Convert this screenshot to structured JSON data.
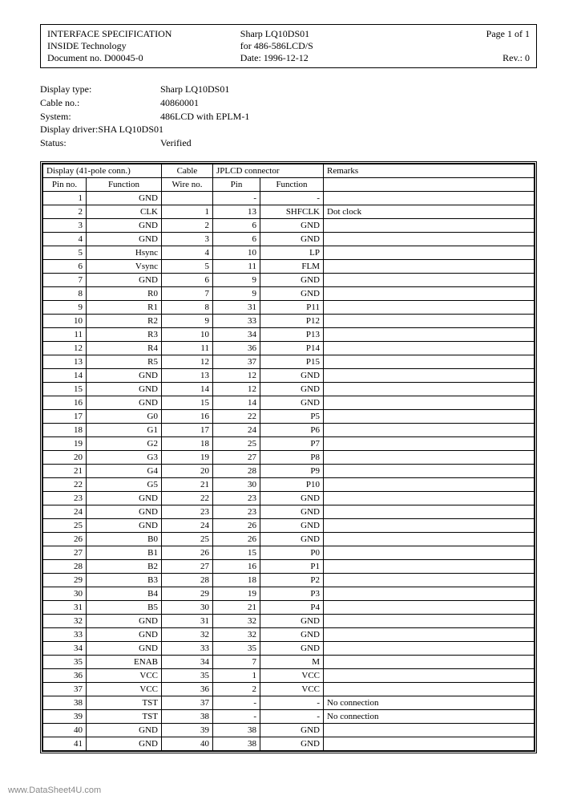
{
  "header": {
    "title": "INTERFACE SPECIFICATION",
    "subtitle": "INSIDE Technology",
    "docno": "Document no. D00045-0",
    "device": "Sharp LQ10DS01",
    "for": "for 486-586LCD/S",
    "date": "Date: 1996-12-12",
    "page": "Page 1 of  1",
    "rev": "Rev.: 0"
  },
  "info": {
    "display_type_label": "Display type:",
    "display_type": "Sharp LQ10DS01",
    "cable_label": "Cable no.:",
    "cable": "40860001",
    "system_label": "System:",
    "system": "486LCD with EPLM-1",
    "driver_label": "Display driver:",
    "driver": "SHA LQ10DS01",
    "status_label": "Status:",
    "status": "Verified"
  },
  "table": {
    "group_display": "Display    (41-pole conn.)",
    "group_cable": "Cable",
    "group_jplcd": "JPLCD     connector",
    "group_remarks": "Remarks",
    "h_pin": "Pin no.",
    "h_func": "Function",
    "h_wire": "Wire no.",
    "h_jpin": "Pin",
    "h_jfunc": "Function",
    "rows": [
      [
        "1",
        "GND",
        "",
        "-",
        "-",
        ""
      ],
      [
        "2",
        "CLK",
        "1",
        "13",
        "SHFCLK",
        "Dot clock"
      ],
      [
        "3",
        "GND",
        "2",
        "6",
        "GND",
        ""
      ],
      [
        "4",
        "GND",
        "3",
        "6",
        "GND",
        ""
      ],
      [
        "5",
        "Hsync",
        "4",
        "10",
        "LP",
        ""
      ],
      [
        "6",
        "Vsync",
        "5",
        "11",
        "FLM",
        ""
      ],
      [
        "7",
        "GND",
        "6",
        "9",
        "GND",
        ""
      ],
      [
        "8",
        "R0",
        "7",
        "9",
        "GND",
        ""
      ],
      [
        "9",
        "R1",
        "8",
        "31",
        "P11",
        ""
      ],
      [
        "10",
        "R2",
        "9",
        "33",
        "P12",
        ""
      ],
      [
        "11",
        "R3",
        "10",
        "34",
        "P13",
        ""
      ],
      [
        "12",
        "R4",
        "11",
        "36",
        "P14",
        ""
      ],
      [
        "13",
        "R5",
        "12",
        "37",
        "P15",
        ""
      ],
      [
        "14",
        "GND",
        "13",
        "12",
        "GND",
        ""
      ],
      [
        "15",
        "GND",
        "14",
        "12",
        "GND",
        ""
      ],
      [
        "16",
        "GND",
        "15",
        "14",
        "GND",
        ""
      ],
      [
        "17",
        "G0",
        "16",
        "22",
        "P5",
        ""
      ],
      [
        "18",
        "G1",
        "17",
        "24",
        "P6",
        ""
      ],
      [
        "19",
        "G2",
        "18",
        "25",
        "P7",
        ""
      ],
      [
        "20",
        "G3",
        "19",
        "27",
        "P8",
        ""
      ],
      [
        "21",
        "G4",
        "20",
        "28",
        "P9",
        ""
      ],
      [
        "22",
        "G5",
        "21",
        "30",
        "P10",
        ""
      ],
      [
        "23",
        "GND",
        "22",
        "23",
        "GND",
        ""
      ],
      [
        "24",
        "GND",
        "23",
        "23",
        "GND",
        ""
      ],
      [
        "25",
        "GND",
        "24",
        "26",
        "GND",
        ""
      ],
      [
        "26",
        "B0",
        "25",
        "26",
        "GND",
        ""
      ],
      [
        "27",
        "B1",
        "26",
        "15",
        "P0",
        ""
      ],
      [
        "28",
        "B2",
        "27",
        "16",
        "P1",
        ""
      ],
      [
        "29",
        "B3",
        "28",
        "18",
        "P2",
        ""
      ],
      [
        "30",
        "B4",
        "29",
        "19",
        "P3",
        ""
      ],
      [
        "31",
        "B5",
        "30",
        "21",
        "P4",
        ""
      ],
      [
        "32",
        "GND",
        "31",
        "32",
        "GND",
        ""
      ],
      [
        "33",
        "GND",
        "32",
        "32",
        "GND",
        ""
      ],
      [
        "34",
        "GND",
        "33",
        "35",
        "GND",
        ""
      ],
      [
        "35",
        "ENAB",
        "34",
        "7",
        "M",
        ""
      ],
      [
        "36",
        "VCC",
        "35",
        "1",
        "VCC",
        ""
      ],
      [
        "37",
        "VCC",
        "36",
        "2",
        "VCC",
        ""
      ],
      [
        "38",
        "TST",
        "37",
        "-",
        "-",
        "No connection"
      ],
      [
        "39",
        "TST",
        "38",
        "-",
        "-",
        "No connection"
      ],
      [
        "40",
        "GND",
        "39",
        "38",
        "GND",
        ""
      ],
      [
        "41",
        "GND",
        "40",
        "38",
        "GND",
        ""
      ]
    ]
  },
  "watermark": "www.DataSheet4U.com"
}
